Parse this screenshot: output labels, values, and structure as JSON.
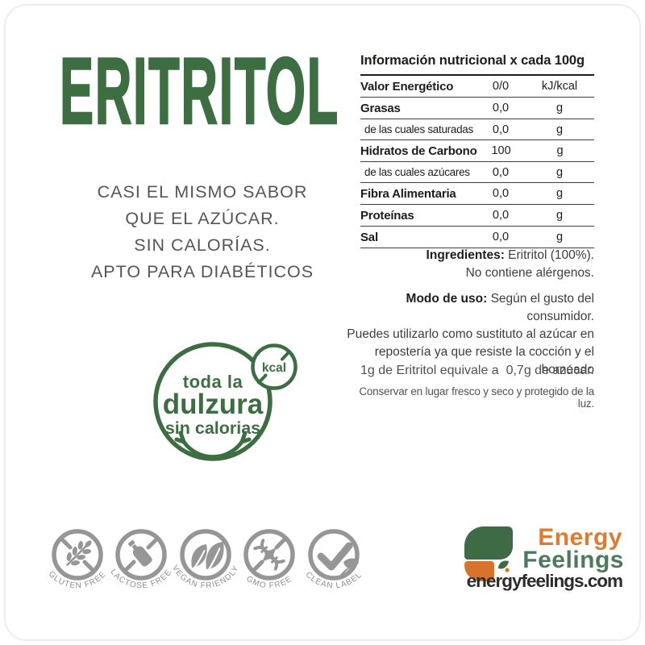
{
  "title": "ERITRITOL",
  "tagline_lines": [
    "CASI EL MISMO SABOR",
    "QUE EL AZÚCAR.",
    "SIN CALORÍAS.",
    "APTO PARA DIABÉTICOS"
  ],
  "badge": {
    "line1": "toda la",
    "line2": "dulzura",
    "line3": "sin calorias",
    "kcal": "kcal"
  },
  "nutrition": {
    "title": "Información nutricional x cada 100g",
    "rows": [
      {
        "label": "Valor Energético",
        "value": "0/0",
        "unit": "kJ/kcal",
        "bold": true
      },
      {
        "label": "Grasas",
        "value": "0,0",
        "unit": "g",
        "bold": true
      },
      {
        "label": "de las cuales saturadas",
        "value": "0,0",
        "unit": "g",
        "bold": false
      },
      {
        "label": "Hidratos de Carbono",
        "value": "100",
        "unit": "g",
        "bold": true
      },
      {
        "label": "de las cuales azúcares",
        "value": "0,0",
        "unit": "g",
        "bold": false
      },
      {
        "label": "Fibra Alimentaria",
        "value": "0,0",
        "unit": "g",
        "bold": true
      },
      {
        "label": "Proteínas",
        "value": "0,0",
        "unit": "g",
        "bold": true
      },
      {
        "label": "Sal",
        "value": "0,0",
        "unit": "g",
        "bold": true
      }
    ]
  },
  "ingredients": {
    "label": "Ingredientes:",
    "rest": " Eritritol (100%).",
    "line2": "No contiene alérgenos."
  },
  "usage": {
    "label": "Modo de uso:",
    "rest": " Según el gusto del consumidor.",
    "lines": [
      "Puedes utilizarlo como sustituto al azúcar en",
      "repostería ya que resiste la cocción y el",
      "horneado"
    ]
  },
  "equivalence": "1g de Eritritol equivale a  0,7g de azúcar.",
  "storage": "Conservar en lugar fresco y seco y protegido de la luz.",
  "certifications": [
    {
      "name": "gluten-free",
      "label": "GLUTEN FREE"
    },
    {
      "name": "lactose-free",
      "label": "LACTOSE FREE"
    },
    {
      "name": "vegan-friendly",
      "label": "VEGAN FRIENDLY"
    },
    {
      "name": "gmo-free",
      "label": "GMO FREE"
    },
    {
      "name": "clean-label",
      "label": "CLEAN LABEL"
    }
  ],
  "brand": {
    "name_top": "Energy",
    "name_bottom": "Feelings",
    "website": "energyfeelings.com"
  },
  "colors": {
    "green": "#3c6e42",
    "text_gray": "#54555c",
    "table_dark": "#1d1d1b",
    "icon_gray": "#969696",
    "orange": "#dd7b30",
    "brand_green": "#4b7a5e"
  }
}
